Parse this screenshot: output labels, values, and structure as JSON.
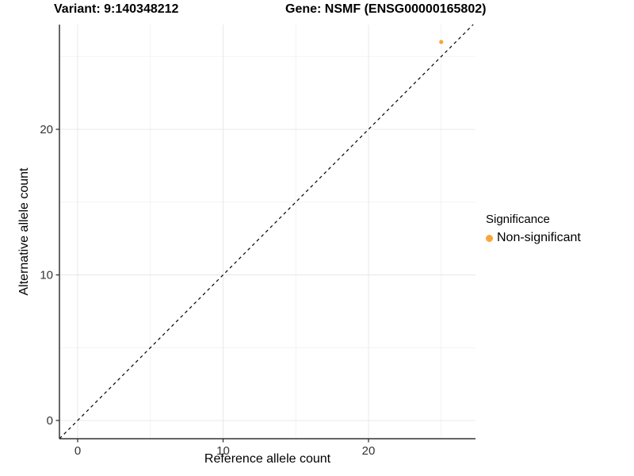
{
  "titles": {
    "variant": "Variant: 9:140348212",
    "gene": "Gene: NSMF (ENSG00000165802)"
  },
  "chart_data": {
    "type": "scatter",
    "title_left": "Variant: 9:140348212",
    "title_right": "Gene: NSMF (ENSG00000165802)",
    "xlabel": "Reference allele count",
    "ylabel": "Alternative allele count",
    "xlim": [
      -1.25,
      27.35
    ],
    "ylim": [
      -1.25,
      27.2
    ],
    "xticks": [
      0,
      10,
      20
    ],
    "yticks": [
      0,
      10,
      20
    ],
    "xticks_minor": [
      5,
      15,
      25
    ],
    "yticks_minor": [
      5,
      15,
      25
    ],
    "grid": "on",
    "series": [
      {
        "name": "Non-significant",
        "color": "#FAA43A",
        "points": [
          {
            "x": 25,
            "y": 26
          }
        ]
      }
    ],
    "identity_line": {
      "equation": "y = x",
      "style": "dashed",
      "color": "#000000"
    },
    "legend": {
      "position": "right",
      "title": "Significance",
      "items": [
        {
          "label": "Non-significant",
          "color": "#FAA43A"
        }
      ]
    },
    "colors": {
      "axis_line": "#333333",
      "tick_label": "#333333",
      "grid_major": "#E8E8E8",
      "grid_minor": "#F3F3F3",
      "point": "#FAA43A",
      "background": "#FFFFFF"
    }
  }
}
